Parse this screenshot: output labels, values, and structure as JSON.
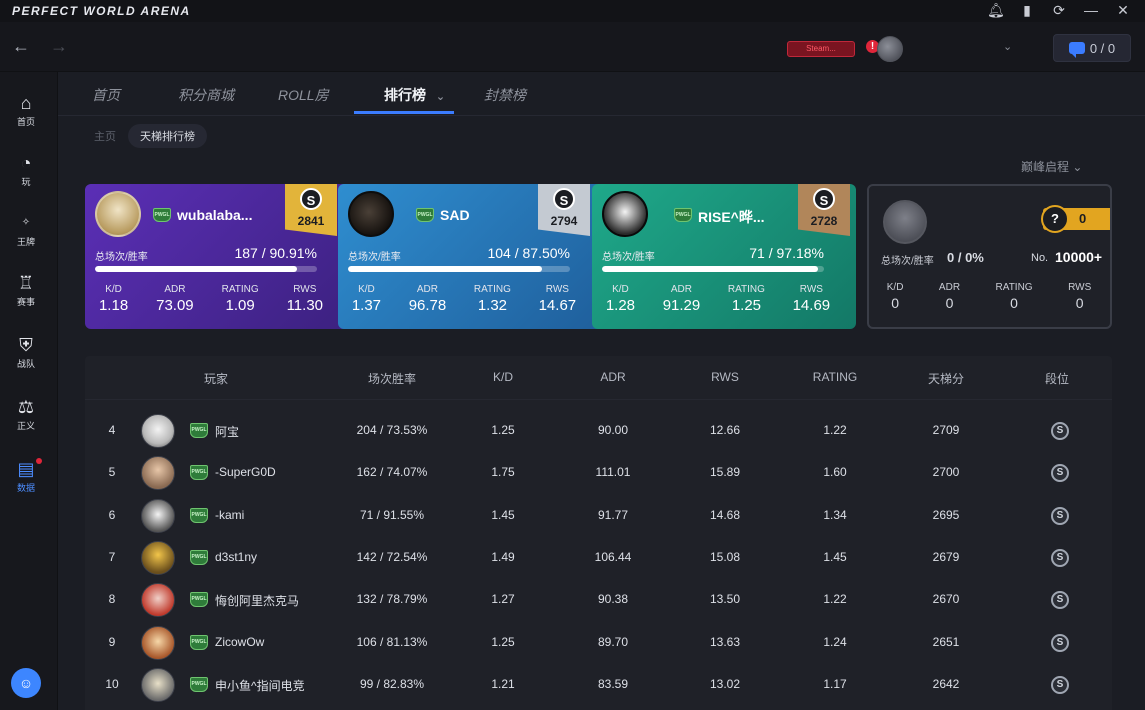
{
  "app": {
    "title": "PERFECT WORLD ARENA"
  },
  "titlebar_icons": [
    "bell-icon",
    "signal-icon",
    "refresh-icon",
    "close-icon"
  ],
  "toolbar": {
    "promo_badge": "Steam...",
    "alert_mark": "!",
    "message_count": "0 / 0"
  },
  "sidebar": {
    "items": [
      {
        "label": "首页",
        "icon": "home-icon",
        "glyph": "⌂"
      },
      {
        "label": "玩",
        "icon": "play-icon",
        "glyph": "◔"
      },
      {
        "label": "王牌",
        "icon": "ace-icon",
        "glyph": "✧"
      },
      {
        "label": "赛事",
        "icon": "trophy-icon",
        "glyph": "♖"
      },
      {
        "label": "战队",
        "icon": "team-icon",
        "glyph": "⛨"
      },
      {
        "label": "正义",
        "icon": "scale-icon",
        "glyph": "⚖"
      },
      {
        "label": "数据",
        "icon": "stats-icon",
        "glyph": "▤"
      }
    ],
    "active_index": 6
  },
  "tabs": [
    {
      "label": "首页"
    },
    {
      "label": "积分商城"
    },
    {
      "label": "ROLL房"
    },
    {
      "label": "排行榜",
      "dropdown": "⌄"
    },
    {
      "label": "封禁榜"
    }
  ],
  "breadcrumb": {
    "home": "主页",
    "current": "天梯排行榜"
  },
  "season_select": "巅峰启程 ⌄",
  "stat_labels": {
    "matches_winrate": "总场次/胜率",
    "kd": "K/D",
    "adr": "ADR",
    "rating": "RATING",
    "rws": "RWS",
    "no": "No."
  },
  "top_players": [
    {
      "name": "wubalaba...",
      "tier": "S",
      "score": "2841",
      "record": "187 / 90.91%",
      "winrate": 0.9091,
      "kd": "1.18",
      "adr": "73.09",
      "rating": "1.09",
      "rws": "11.30"
    },
    {
      "name": "SAD",
      "tier": "S",
      "score": "2794",
      "record": "104 / 87.50%",
      "winrate": 0.875,
      "kd": "1.37",
      "adr": "96.78",
      "rating": "1.32",
      "rws": "14.67"
    },
    {
      "name": "RISE^晔...",
      "tier": "S",
      "score": "2728",
      "record": "71 / 97.18%",
      "winrate": 0.9718,
      "kd": "1.28",
      "adr": "91.29",
      "rating": "1.25",
      "rws": "14.69"
    }
  ],
  "my_card": {
    "tier": "?",
    "score": "0",
    "record": "0 / 0%",
    "rank_no": "10000+",
    "kd": "0",
    "adr": "0",
    "rating": "0",
    "rws": "0"
  },
  "table": {
    "headers": [
      "玩家",
      "场次胜率",
      "K/D",
      "ADR",
      "RWS",
      "RATING",
      "天梯分",
      "段位"
    ],
    "rows": [
      {
        "rank": "4",
        "name": "阿宝",
        "record": "204 / 73.53%",
        "kd": "1.25",
        "adr": "90.00",
        "rws": "12.66",
        "rating": "1.22",
        "score": "2709",
        "tier": "S"
      },
      {
        "rank": "5",
        "name": "-SuperG0D",
        "record": "162 / 74.07%",
        "kd": "1.75",
        "adr": "111.01",
        "rws": "15.89",
        "rating": "1.60",
        "score": "2700",
        "tier": "S"
      },
      {
        "rank": "6",
        "name": "-kami",
        "record": "71 / 91.55%",
        "kd": "1.45",
        "adr": "91.77",
        "rws": "14.68",
        "rating": "1.34",
        "score": "2695",
        "tier": "S"
      },
      {
        "rank": "7",
        "name": "d3st1ny",
        "record": "142 / 72.54%",
        "kd": "1.49",
        "adr": "106.44",
        "rws": "15.08",
        "rating": "1.45",
        "score": "2679",
        "tier": "S"
      },
      {
        "rank": "8",
        "name": "悔创阿里杰克马",
        "record": "132 / 78.79%",
        "kd": "1.27",
        "adr": "90.38",
        "rws": "13.50",
        "rating": "1.22",
        "score": "2670",
        "tier": "S"
      },
      {
        "rank": "9",
        "name": "ZicowOw",
        "record": "106 / 81.13%",
        "kd": "1.25",
        "adr": "89.70",
        "rws": "13.63",
        "rating": "1.24",
        "score": "2651",
        "tier": "S"
      },
      {
        "rank": "10",
        "name": "申小鱼^指间电竞",
        "record": "99 / 82.83%",
        "kd": "1.21",
        "adr": "83.59",
        "rws": "13.02",
        "rating": "1.17",
        "score": "2642",
        "tier": "S"
      }
    ]
  },
  "colors": {
    "accent": "#3b7cff",
    "gold": "#e2b43a",
    "silver": "#c4cad2",
    "bronze": "#b1865a",
    "card1": "#5b2fb6",
    "card2": "#2f8ed0",
    "card3": "#1fa98a"
  }
}
